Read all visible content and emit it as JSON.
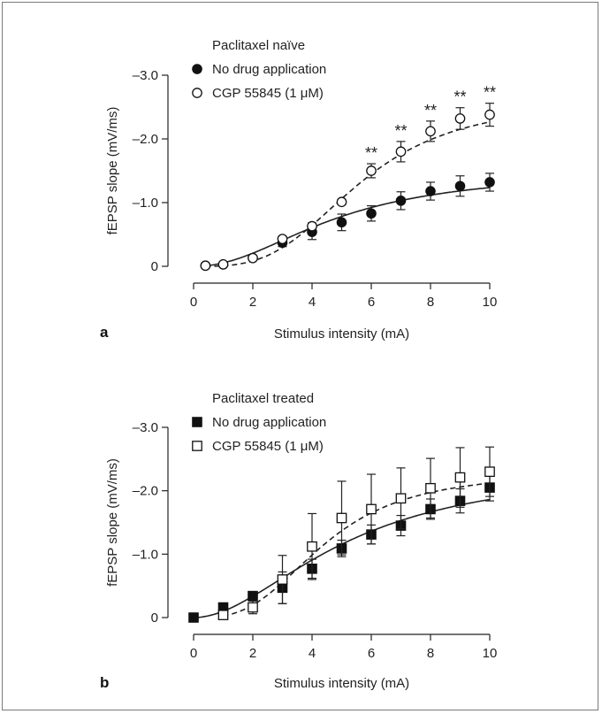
{
  "chart_data": [
    {
      "panel": "a",
      "type": "scatter",
      "title": "Paclitaxel naïve",
      "xlabel": "Stimulus intensity (mA)",
      "ylabel": "fEPSP slope (mV/ms)",
      "xlim": [
        0,
        10
      ],
      "ylim": [
        0,
        -3.0
      ],
      "xticks": [
        "0",
        "2",
        "4",
        "6",
        "8",
        "10"
      ],
      "yticks": [
        "0",
        "–1.0",
        "–2.0",
        "–3.0"
      ],
      "legend_position": "top-left",
      "grid": false,
      "series": [
        {
          "name": "No drug application",
          "marker": "filled-circle",
          "fit": "solid",
          "x": [
            0.4,
            1,
            2,
            3,
            4,
            5,
            6,
            7,
            8,
            9,
            10
          ],
          "y": [
            -0.01,
            -0.03,
            -0.13,
            -0.37,
            -0.54,
            -0.69,
            -0.83,
            -1.03,
            -1.18,
            -1.26,
            -1.32
          ],
          "err": [
            0.01,
            0.02,
            0.03,
            0.06,
            0.12,
            0.13,
            0.12,
            0.14,
            0.14,
            0.16,
            0.14
          ]
        },
        {
          "name": "CGP 55845 (1 μM)",
          "marker": "open-circle",
          "fit": "dashed",
          "x": [
            0.4,
            1,
            2,
            3,
            4,
            5,
            6,
            7,
            8,
            9,
            10
          ],
          "y": [
            -0.01,
            -0.03,
            -0.13,
            -0.43,
            -0.63,
            -1.01,
            -1.5,
            -1.8,
            -2.12,
            -2.32,
            -2.38
          ],
          "err": [
            0.01,
            0.02,
            0.03,
            0.04,
            0.05,
            0.04,
            0.11,
            0.16,
            0.16,
            0.17,
            0.18
          ],
          "significance": "**",
          "significance_x": [
            6,
            7,
            8,
            9,
            10
          ]
        }
      ]
    },
    {
      "panel": "b",
      "type": "scatter",
      "title": "Paclitaxel treated",
      "xlabel": "Stimulus intensity (mA)",
      "ylabel": "fEPSP slope (mV/ms)",
      "xlim": [
        0,
        10
      ],
      "ylim": [
        0,
        -3.0
      ],
      "xticks": [
        "0",
        "2",
        "4",
        "6",
        "8",
        "10"
      ],
      "yticks": [
        "0",
        "–1.0",
        "–2.0",
        "–3.0"
      ],
      "legend_position": "top-left",
      "grid": false,
      "series": [
        {
          "name": "No drug application",
          "marker": "filled-square",
          "fit": "solid",
          "x": [
            0,
            1,
            2,
            3,
            4,
            5,
            6,
            7,
            8,
            9,
            10
          ],
          "y": [
            0.0,
            -0.16,
            -0.34,
            -0.47,
            -0.77,
            -1.09,
            -1.31,
            -1.45,
            -1.71,
            -1.84,
            -2.05
          ],
          "err": [
            0.0,
            0.04,
            0.06,
            0.25,
            0.15,
            0.13,
            0.15,
            0.16,
            0.16,
            0.19,
            0.21
          ]
        },
        {
          "name": "CGP 55845 (1 μM)",
          "marker": "open-square",
          "fit": "dashed",
          "x": [
            1,
            2,
            3,
            4,
            5,
            6,
            7,
            8,
            9,
            10
          ],
          "y": [
            -0.04,
            -0.16,
            -0.6,
            -1.12,
            -1.57,
            -1.71,
            -1.88,
            -2.04,
            -2.21,
            -2.3
          ],
          "err": [
            0.03,
            0.1,
            0.38,
            0.52,
            0.58,
            0.55,
            0.48,
            0.47,
            0.47,
            0.39
          ]
        }
      ]
    }
  ]
}
